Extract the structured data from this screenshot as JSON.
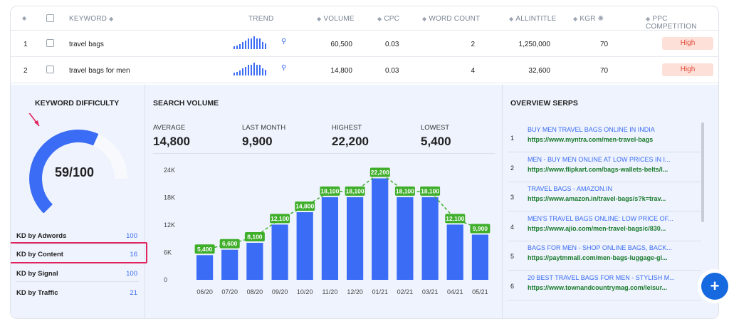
{
  "table": {
    "headers": {
      "keyword": "KEYWORD",
      "trend": "TREND",
      "volume": "VOLUME",
      "cpc": "CPC",
      "word_count": "WORD COUNT",
      "allintitle": "ALLINTITLE",
      "kgr": "KGR",
      "ppc": "PPC COMPETITION"
    },
    "rows": [
      {
        "index": "1",
        "keyword": "travel bags",
        "volume": "60,500",
        "cpc": "0.03",
        "word_count": "2",
        "allintitle": "1,250,000",
        "kgr": "70",
        "ppc": "High"
      },
      {
        "index": "2",
        "keyword": "travel bags for men",
        "volume": "14,800",
        "cpc": "0.03",
        "word_count": "4",
        "allintitle": "32,600",
        "kgr": "70",
        "ppc": "High"
      }
    ],
    "trend_values": [
      5400,
      6600,
      8100,
      12100,
      14800,
      18100,
      18100,
      22200,
      18100,
      18100,
      12100,
      9900
    ]
  },
  "keyword_difficulty": {
    "title": "KEYWORD DIFFICULTY",
    "score_label": "59/100",
    "score": 59,
    "max": 100,
    "items": [
      {
        "label": "KD by Adwords",
        "value": "100"
      },
      {
        "label": "KD by Content",
        "value": "16"
      },
      {
        "label": "KD by Signal",
        "value": "100"
      },
      {
        "label": "KD by Traffic",
        "value": "21"
      }
    ],
    "colors": {
      "gauge_fill": "#3b6cf5",
      "gauge_track": "#f7f9fd",
      "annotation": "#e0245e"
    }
  },
  "search_volume": {
    "title": "SEARCH VOLUME",
    "stats": [
      {
        "label": "AVERAGE",
        "value": "14,800"
      },
      {
        "label": "LAST MONTH",
        "value": "9,900"
      },
      {
        "label": "HIGHEST",
        "value": "22,200"
      },
      {
        "label": "LOWEST",
        "value": "5,400"
      }
    ]
  },
  "chart_data": {
    "type": "bar",
    "categories": [
      "06/20",
      "07/20",
      "08/20",
      "09/20",
      "10/20",
      "11/20",
      "12/20",
      "01/21",
      "02/21",
      "03/21",
      "04/21",
      "05/21"
    ],
    "values": [
      5400,
      6600,
      8100,
      12100,
      14800,
      18100,
      18100,
      22200,
      18100,
      18100,
      12100,
      9900
    ],
    "data_labels": [
      "5,400",
      "6,600",
      "8,100",
      "12,100",
      "14,800",
      "18,100",
      "18,100",
      "22,200",
      "18,100",
      "18,100",
      "12,100",
      "9,900"
    ],
    "y_ticks": [
      0,
      6000,
      12000,
      18000,
      24000
    ],
    "y_tick_labels": [
      "0",
      "6K",
      "12K",
      "18K",
      "24K"
    ],
    "ylim": [
      0,
      24000
    ],
    "bar_color": "#3b6cf5",
    "label_color": "#3fae2a",
    "title": "",
    "xlabel": "",
    "ylabel": ""
  },
  "overview_serps": {
    "title": "OVERVIEW SERPS",
    "items": [
      {
        "index": "1",
        "title": "BUY MEN TRAVEL BAGS ONLINE IN INDIA",
        "url": "https://www.myntra.com/men-travel-bags"
      },
      {
        "index": "2",
        "title": "MEN - BUY MEN ONLINE AT LOW PRICES IN I...",
        "url": "https://www.flipkart.com/bags-wallets-belts/l..."
      },
      {
        "index": "3",
        "title": "TRAVEL BAGS - AMAZON.IN",
        "url": "https://www.amazon.in/travel-bags/s?k=trav..."
      },
      {
        "index": "4",
        "title": "MEN'S TRAVEL BAGS ONLINE: LOW PRICE OF...",
        "url": "https://www.ajio.com/men-travel-bags/c/830..."
      },
      {
        "index": "5",
        "title": "BAGS FOR MEN - SHOP ONLINE BAGS, BACK...",
        "url": "https://paytmmall.com/men-bags-luggage-gl..."
      },
      {
        "index": "6",
        "title": "20 BEST TRAVEL BAGS FOR MEN - STYLISH M...",
        "url": "https://www.townandcountrymag.com/leisur..."
      }
    ]
  },
  "icons": {
    "sort": "sort-icon",
    "search": "search-icon",
    "bulb": "lightbulb-icon",
    "fab": "plus-icon"
  },
  "fab": {
    "label": "+"
  }
}
